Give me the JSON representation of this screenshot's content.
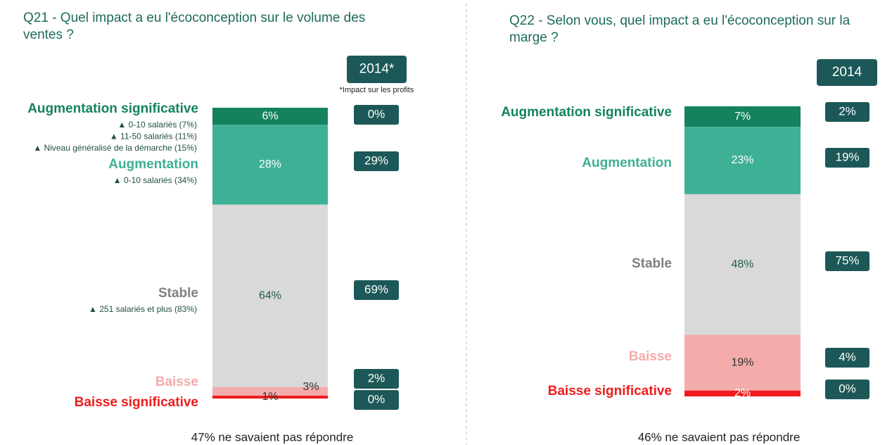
{
  "chart_data": [
    {
      "type": "stacked_bar",
      "title": "Q21 - Quel impact a eu l'écoconception sur le volume des ventes ?",
      "categories": [
        "Augmentation significative",
        "Augmentation",
        "Stable",
        "Baisse",
        "Baisse significative"
      ],
      "values": [
        6,
        28,
        64,
        3,
        1
      ],
      "value_labels": [
        "6%",
        "28%",
        "64%",
        "3%",
        "1%"
      ],
      "colors": [
        "#15825f",
        "#3eb096",
        "#d9d9d9",
        "#f4abab",
        "#ee1c1c"
      ],
      "label_colors": [
        "#15825f",
        "#3eb096",
        "#808080",
        "#f4abab",
        "#ee1c1c"
      ],
      "annotations": [
        [
          "▲  0-10 salariés (7%)",
          "▲  11-50 salariés (11%)",
          "▲  Niveau généralisé de la démarche (15%)"
        ],
        [
          "▲  0-10 salariés (34%)"
        ],
        [
          "▲  251 salariés et plus (83%)"
        ],
        [],
        []
      ],
      "compare": {
        "header": "2014*",
        "note": "*Impact sur les profits",
        "values": [
          0,
          29,
          69,
          2,
          0
        ],
        "value_labels": [
          "0%",
          "29%",
          "69%",
          "2%",
          "0%"
        ]
      },
      "footer": "47% ne savaient pas répondre"
    },
    {
      "type": "stacked_bar",
      "title": "Q22 - Selon vous, quel impact a eu l'écoconception sur la marge ?",
      "categories": [
        "Augmentation significative",
        "Augmentation",
        "Stable",
        "Baisse",
        "Baisse significative"
      ],
      "values": [
        7,
        23,
        48,
        19,
        2
      ],
      "value_labels": [
        "7%",
        "23%",
        "48%",
        "19%",
        "2%"
      ],
      "colors": [
        "#15825f",
        "#3eb096",
        "#d9d9d9",
        "#f4abab",
        "#ee1c1c"
      ],
      "label_colors": [
        "#15825f",
        "#3eb096",
        "#808080",
        "#f4abab",
        "#ee1c1c"
      ],
      "annotations": [
        [],
        [],
        [],
        [],
        []
      ],
      "compare": {
        "header": "2014",
        "values": [
          2,
          19,
          75,
          4,
          0
        ],
        "value_labels": [
          "2%",
          "19%",
          "75%",
          "4%",
          "0%"
        ]
      },
      "footer": "46% ne savaient pas répondre"
    }
  ]
}
